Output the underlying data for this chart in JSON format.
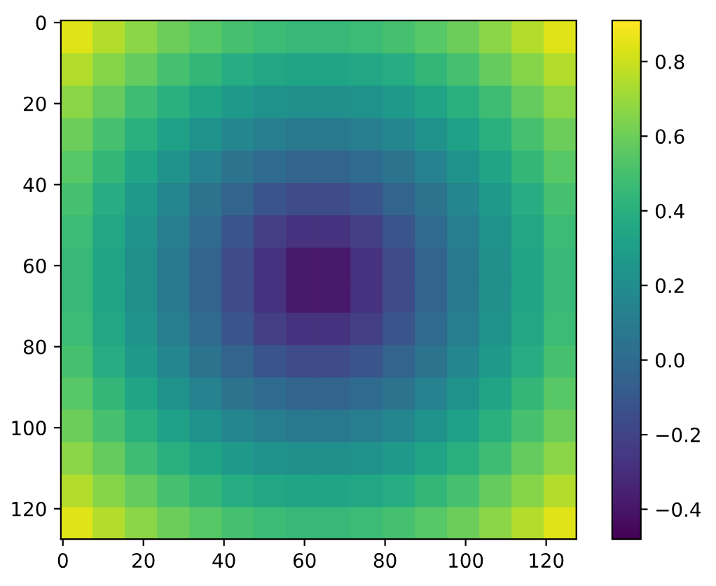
{
  "chart_data": {
    "type": "heatmap",
    "xlim": [
      -0.5,
      127.5
    ],
    "ylim": [
      127.5,
      -0.5
    ],
    "xticks": [
      0,
      20,
      40,
      60,
      80,
      100,
      120
    ],
    "yticks": [
      0,
      20,
      40,
      60,
      80,
      100,
      120
    ],
    "clim": [
      -0.48,
      0.91
    ],
    "cticks": [
      {
        "value": -0.4,
        "label": "−0.4"
      },
      {
        "value": -0.2,
        "label": "−0.2"
      },
      {
        "value": 0.0,
        "label": "0.0"
      },
      {
        "value": 0.2,
        "label": "0.2"
      },
      {
        "value": 0.4,
        "label": "0.4"
      },
      {
        "value": 0.6,
        "label": "0.6"
      },
      {
        "value": 0.8,
        "label": "0.8"
      }
    ],
    "cells": [
      [
        0.84,
        0.75,
        0.67,
        0.6,
        0.55,
        0.5,
        0.47,
        0.45,
        0.45,
        0.47,
        0.5,
        0.55,
        0.6,
        0.67,
        0.75,
        0.84
      ],
      [
        0.75,
        0.66,
        0.58,
        0.5,
        0.44,
        0.38,
        0.35,
        0.33,
        0.33,
        0.35,
        0.38,
        0.44,
        0.5,
        0.58,
        0.66,
        0.75
      ],
      [
        0.67,
        0.58,
        0.48,
        0.4,
        0.33,
        0.27,
        0.23,
        0.21,
        0.21,
        0.23,
        0.27,
        0.33,
        0.4,
        0.48,
        0.58,
        0.67
      ],
      [
        0.6,
        0.5,
        0.4,
        0.31,
        0.23,
        0.16,
        0.11,
        0.08,
        0.08,
        0.11,
        0.16,
        0.23,
        0.31,
        0.4,
        0.5,
        0.6
      ],
      [
        0.55,
        0.44,
        0.33,
        0.23,
        0.13,
        0.05,
        0.0,
        -0.04,
        -0.04,
        0.0,
        0.05,
        0.13,
        0.23,
        0.33,
        0.44,
        0.55
      ],
      [
        0.5,
        0.38,
        0.27,
        0.16,
        0.05,
        -0.04,
        -0.12,
        -0.16,
        -0.16,
        -0.12,
        -0.04,
        0.05,
        0.16,
        0.27,
        0.38,
        0.5
      ],
      [
        0.47,
        0.35,
        0.23,
        0.11,
        0.0,
        -0.12,
        -0.22,
        -0.28,
        -0.28,
        -0.22,
        -0.12,
        0.0,
        0.11,
        0.23,
        0.35,
        0.47
      ],
      [
        0.45,
        0.33,
        0.21,
        0.08,
        -0.04,
        -0.16,
        -0.28,
        -0.39,
        -0.39,
        -0.28,
        -0.16,
        -0.04,
        0.08,
        0.21,
        0.33,
        0.45
      ],
      [
        0.45,
        0.33,
        0.21,
        0.08,
        -0.04,
        -0.16,
        -0.28,
        -0.39,
        -0.39,
        -0.28,
        -0.16,
        -0.04,
        0.08,
        0.21,
        0.33,
        0.45
      ],
      [
        0.47,
        0.35,
        0.23,
        0.11,
        0.0,
        -0.12,
        -0.22,
        -0.28,
        -0.28,
        -0.22,
        -0.12,
        0.0,
        0.11,
        0.23,
        0.35,
        0.47
      ],
      [
        0.5,
        0.38,
        0.27,
        0.16,
        0.05,
        -0.04,
        -0.12,
        -0.16,
        -0.16,
        -0.12,
        -0.04,
        0.05,
        0.16,
        0.27,
        0.38,
        0.5
      ],
      [
        0.55,
        0.44,
        0.33,
        0.23,
        0.13,
        0.05,
        0.0,
        -0.04,
        -0.04,
        0.0,
        0.05,
        0.13,
        0.23,
        0.33,
        0.44,
        0.55
      ],
      [
        0.6,
        0.5,
        0.4,
        0.31,
        0.23,
        0.16,
        0.11,
        0.08,
        0.08,
        0.11,
        0.16,
        0.23,
        0.31,
        0.4,
        0.5,
        0.6
      ],
      [
        0.67,
        0.58,
        0.48,
        0.4,
        0.33,
        0.27,
        0.23,
        0.21,
        0.21,
        0.23,
        0.27,
        0.33,
        0.4,
        0.48,
        0.58,
        0.67
      ],
      [
        0.75,
        0.66,
        0.58,
        0.5,
        0.44,
        0.38,
        0.35,
        0.33,
        0.33,
        0.35,
        0.38,
        0.44,
        0.5,
        0.58,
        0.66,
        0.75
      ],
      [
        0.84,
        0.75,
        0.67,
        0.6,
        0.55,
        0.5,
        0.47,
        0.45,
        0.45,
        0.47,
        0.5,
        0.55,
        0.6,
        0.67,
        0.75,
        0.84
      ]
    ]
  }
}
